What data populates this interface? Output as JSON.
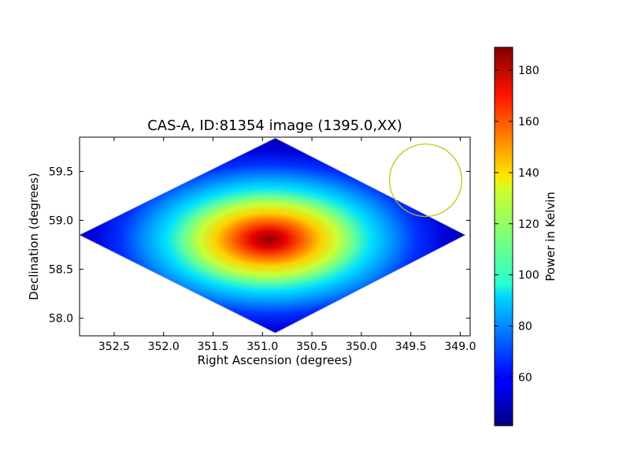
{
  "chart_data": {
    "type": "heatmap",
    "title": "CAS-A, ID:81354 image (1395.0,XX)",
    "xlabel": "Right Ascension (degrees)",
    "ylabel": "Declination (degrees)",
    "xlim": [
      352.85,
      348.9
    ],
    "ylim": [
      57.82,
      59.85
    ],
    "x_ticks": [
      352.5,
      352.0,
      351.5,
      351.0,
      350.5,
      350.0,
      349.5,
      349.0
    ],
    "x_tick_labels": [
      "352.5",
      "352.0",
      "351.5",
      "351.0",
      "350.5",
      "350.0",
      "349.5",
      "349.0"
    ],
    "y_ticks": [
      58.0,
      58.5,
      59.0,
      59.5
    ],
    "y_tick_labels": [
      "58.0",
      "58.5",
      "59.0",
      "59.5"
    ],
    "colormap": "jet",
    "colorbar": {
      "label": "Power in Kelvin",
      "range": [
        41,
        189
      ],
      "ticks": [
        60,
        80,
        100,
        120,
        140,
        160,
        180
      ],
      "tick_labels": [
        "60",
        "80",
        "100",
        "120",
        "140",
        "160",
        "180"
      ]
    },
    "footprint": {
      "left": [
        352.85,
        58.85
      ],
      "top": [
        350.87,
        59.84
      ],
      "right": [
        348.95,
        58.85
      ],
      "bottom": [
        350.87,
        57.85
      ]
    },
    "peak": {
      "ra": 350.87,
      "dec": 58.83,
      "value": 189
    },
    "background_value": 41,
    "beam_circle": {
      "ra": 349.35,
      "dec": 59.41,
      "radius_deg": 0.37,
      "color": "#bfbf00"
    },
    "grid": false
  }
}
